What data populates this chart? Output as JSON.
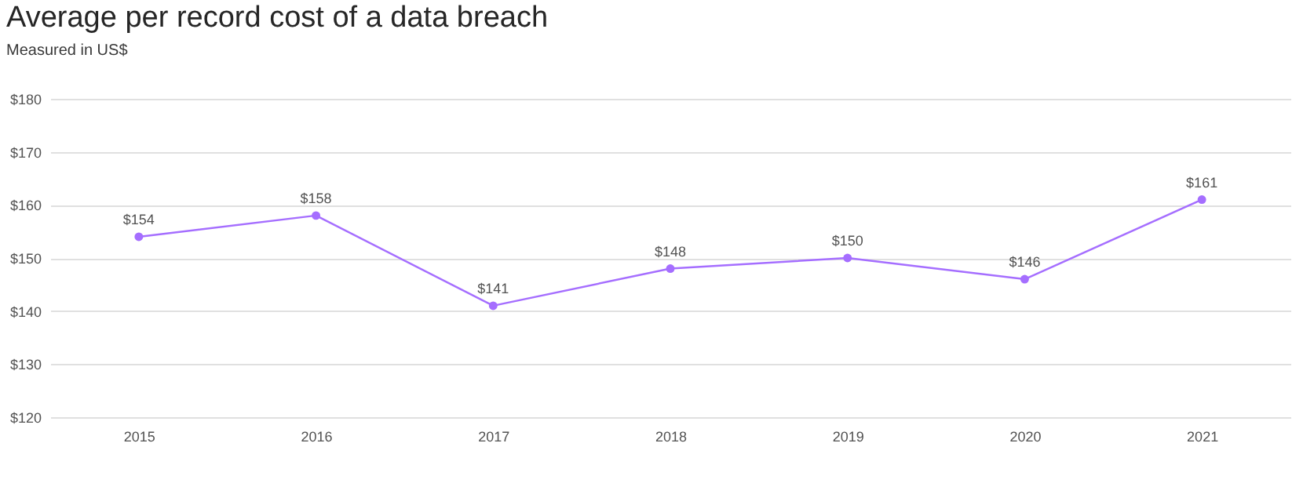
{
  "chart_data": {
    "type": "line",
    "title": "Average per record cost of a data breach",
    "subtitle": "Measured in US$",
    "categories": [
      "2015",
      "2016",
      "2017",
      "2018",
      "2019",
      "2020",
      "2021"
    ],
    "series": [
      {
        "color": "#a56eff",
        "values": [
          154,
          158,
          141,
          148,
          150,
          146,
          161
        ],
        "value_labels": [
          "$154",
          "$158",
          "$141",
          "$148",
          "$150",
          "$146",
          "$161"
        ]
      }
    ],
    "ylim": [
      120,
      180
    ],
    "yticks": [
      {
        "value": 120,
        "label": "$120"
      },
      {
        "value": 130,
        "label": "$130"
      },
      {
        "value": 140,
        "label": "$140"
      },
      {
        "value": 150,
        "label": "$150"
      },
      {
        "value": 160,
        "label": "$160"
      },
      {
        "value": 170,
        "label": "$170"
      },
      {
        "value": 180,
        "label": "$180"
      }
    ],
    "grid": "y",
    "marker": "circle",
    "line_style": "solid",
    "legend": false
  }
}
